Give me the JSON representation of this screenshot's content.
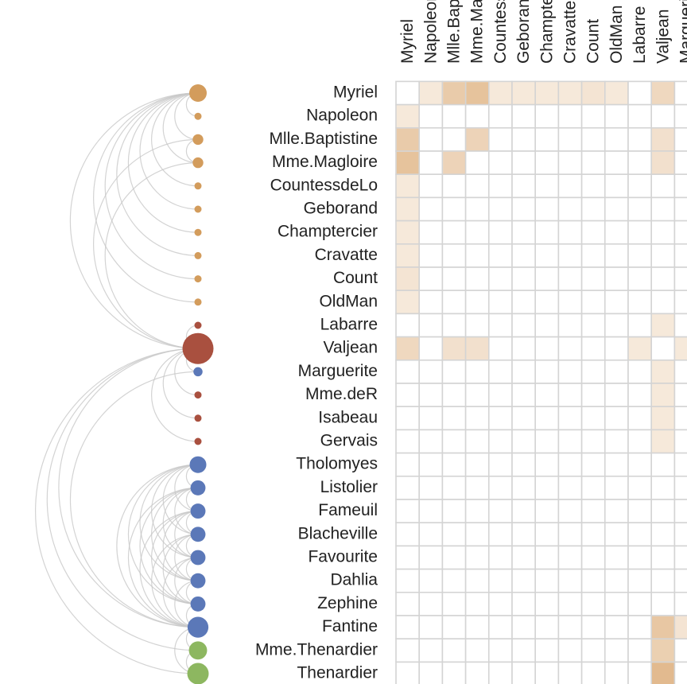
{
  "nodes": [
    {
      "label": "Myriel",
      "color": "#d39c5c",
      "degree": 10
    },
    {
      "label": "Napoleon",
      "color": "#d39c5c",
      "degree": 1
    },
    {
      "label": "Mlle.Baptistine",
      "color": "#d39c5c",
      "degree": 3
    },
    {
      "label": "Mme.Magloire",
      "color": "#d39c5c",
      "degree": 3
    },
    {
      "label": "CountessdeLo",
      "color": "#d39c5c",
      "degree": 1
    },
    {
      "label": "Geborand",
      "color": "#d39c5c",
      "degree": 1
    },
    {
      "label": "Champtercier",
      "color": "#d39c5c",
      "degree": 1
    },
    {
      "label": "Cravatte",
      "color": "#d39c5c",
      "degree": 1
    },
    {
      "label": "Count",
      "color": "#d39c5c",
      "degree": 1
    },
    {
      "label": "OldMan",
      "color": "#d39c5c",
      "degree": 1
    },
    {
      "label": "Labarre",
      "color": "#a9503f",
      "degree": 1
    },
    {
      "label": "Valjean",
      "color": "#a9503f",
      "degree": 36
    },
    {
      "label": "Marguerite",
      "color": "#5b78b8",
      "degree": 2
    },
    {
      "label": "Mme.deR",
      "color": "#a9503f",
      "degree": 1
    },
    {
      "label": "Isabeau",
      "color": "#a9503f",
      "degree": 1
    },
    {
      "label": "Gervais",
      "color": "#a9503f",
      "degree": 1
    },
    {
      "label": "Tholomyes",
      "color": "#5b78b8",
      "degree": 9
    },
    {
      "label": "Listolier",
      "color": "#5b78b8",
      "degree": 7
    },
    {
      "label": "Fameuil",
      "color": "#5b78b8",
      "degree": 7
    },
    {
      "label": "Blacheville",
      "color": "#5b78b8",
      "degree": 7
    },
    {
      "label": "Favourite",
      "color": "#5b78b8",
      "degree": 7
    },
    {
      "label": "Dahlia",
      "color": "#5b78b8",
      "degree": 7
    },
    {
      "label": "Zephine",
      "color": "#5b78b8",
      "degree": 7
    },
    {
      "label": "Fantine",
      "color": "#5b78b8",
      "degree": 15
    },
    {
      "label": "Mme.Thenardier",
      "color": "#8db760",
      "degree": 11
    },
    {
      "label": "Thenardier",
      "color": "#8db760",
      "degree": 16
    }
  ],
  "visible_columns": 13,
  "cell_color": "#d9a46a",
  "links": [
    {
      "source": "Napoleon",
      "target": "Myriel",
      "value": 1
    },
    {
      "source": "Mlle.Baptistine",
      "target": "Myriel",
      "value": 8
    },
    {
      "source": "Mme.Magloire",
      "target": "Myriel",
      "value": 10
    },
    {
      "source": "Mme.Magloire",
      "target": "Mlle.Baptistine",
      "value": 6
    },
    {
      "source": "CountessdeLo",
      "target": "Myriel",
      "value": 1
    },
    {
      "source": "Geborand",
      "target": "Myriel",
      "value": 1
    },
    {
      "source": "Champtercier",
      "target": "Myriel",
      "value": 1
    },
    {
      "source": "Cravatte",
      "target": "Myriel",
      "value": 1
    },
    {
      "source": "Count",
      "target": "Myriel",
      "value": 2
    },
    {
      "source": "OldMan",
      "target": "Myriel",
      "value": 1
    },
    {
      "source": "Valjean",
      "target": "Labarre",
      "value": 1
    },
    {
      "source": "Valjean",
      "target": "Mme.Magloire",
      "value": 3
    },
    {
      "source": "Valjean",
      "target": "Mlle.Baptistine",
      "value": 3
    },
    {
      "source": "Valjean",
      "target": "Myriel",
      "value": 5
    },
    {
      "source": "Marguerite",
      "target": "Valjean",
      "value": 1
    },
    {
      "source": "Mme.deR",
      "target": "Valjean",
      "value": 1
    },
    {
      "source": "Isabeau",
      "target": "Valjean",
      "value": 1
    },
    {
      "source": "Gervais",
      "target": "Valjean",
      "value": 1
    },
    {
      "source": "Listolier",
      "target": "Tholomyes",
      "value": 4
    },
    {
      "source": "Fameuil",
      "target": "Tholomyes",
      "value": 4
    },
    {
      "source": "Fameuil",
      "target": "Listolier",
      "value": 4
    },
    {
      "source": "Blacheville",
      "target": "Tholomyes",
      "value": 4
    },
    {
      "source": "Blacheville",
      "target": "Listolier",
      "value": 4
    },
    {
      "source": "Blacheville",
      "target": "Fameuil",
      "value": 4
    },
    {
      "source": "Favourite",
      "target": "Tholomyes",
      "value": 3
    },
    {
      "source": "Favourite",
      "target": "Listolier",
      "value": 3
    },
    {
      "source": "Favourite",
      "target": "Fameuil",
      "value": 3
    },
    {
      "source": "Favourite",
      "target": "Blacheville",
      "value": 4
    },
    {
      "source": "Dahlia",
      "target": "Listolier",
      "value": 3
    },
    {
      "source": "Dahlia",
      "target": "Fameuil",
      "value": 3
    },
    {
      "source": "Dahlia",
      "target": "Blacheville",
      "value": 3
    },
    {
      "source": "Dahlia",
      "target": "Favourite",
      "value": 5
    },
    {
      "source": "Dahlia",
      "target": "Tholomyes",
      "value": 3
    },
    {
      "source": "Zephine",
      "target": "Listolier",
      "value": 3
    },
    {
      "source": "Zephine",
      "target": "Fameuil",
      "value": 3
    },
    {
      "source": "Zephine",
      "target": "Blacheville",
      "value": 3
    },
    {
      "source": "Zephine",
      "target": "Favourite",
      "value": 4
    },
    {
      "source": "Zephine",
      "target": "Dahlia",
      "value": 4
    },
    {
      "source": "Zephine",
      "target": "Tholomyes",
      "value": 3
    },
    {
      "source": "Fantine",
      "target": "Listolier",
      "value": 3
    },
    {
      "source": "Fantine",
      "target": "Fameuil",
      "value": 3
    },
    {
      "source": "Fantine",
      "target": "Blacheville",
      "value": 3
    },
    {
      "source": "Fantine",
      "target": "Favourite",
      "value": 4
    },
    {
      "source": "Fantine",
      "target": "Dahlia",
      "value": 4
    },
    {
      "source": "Fantine",
      "target": "Tholomyes",
      "value": 3
    },
    {
      "source": "Fantine",
      "target": "Zephine",
      "value": 4
    },
    {
      "source": "Fantine",
      "target": "Marguerite",
      "value": 2
    },
    {
      "source": "Fantine",
      "target": "Valjean",
      "value": 9
    },
    {
      "source": "Mme.Thenardier",
      "target": "Fantine",
      "value": 2
    },
    {
      "source": "Mme.Thenardier",
      "target": "Valjean",
      "value": 7
    },
    {
      "source": "Thenardier",
      "target": "Mme.Thenardier",
      "value": 13
    },
    {
      "source": "Thenardier",
      "target": "Fantine",
      "value": 1
    },
    {
      "source": "Thenardier",
      "target": "Valjean",
      "value": 12
    }
  ]
}
